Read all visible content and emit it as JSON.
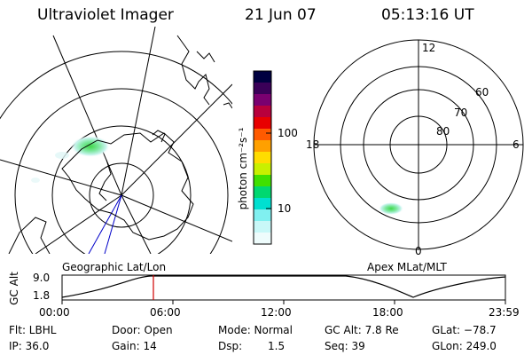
{
  "header": {
    "title": "Ultraviolet Imager",
    "date": "21 Jun 07",
    "time": "05:13:16 UT"
  },
  "colorbar": {
    "unit_label": "photon cm⁻²s⁻¹",
    "tick_100": "100",
    "tick_10": "10",
    "colors": [
      "#000040",
      "#3a0058",
      "#7a0070",
      "#b8003c",
      "#e80000",
      "#ff5a00",
      "#ffa000",
      "#ffdc00",
      "#c8f000",
      "#40e000",
      "#00d870",
      "#00e0d0",
      "#80f0f0",
      "#c8f8f8",
      "#eefcfc"
    ]
  },
  "left_map": {
    "label": "Geographic Lat/Lon"
  },
  "right_map": {
    "label": "Apex MLat/MLT",
    "mlt_top": "12",
    "mlt_left": "18",
    "mlt_right": "6",
    "mlt_bottom": "0",
    "lat_60": "60",
    "lat_70": "70",
    "lat_80": "80"
  },
  "altitude_plot": {
    "ylabel": "GC Alt",
    "ytick_high": "9.0",
    "ytick_low": "1.8",
    "xticks": [
      "00:00",
      "06:00",
      "12:00",
      "18:00",
      "23:59"
    ],
    "marker_color": "#d00000"
  },
  "footer": {
    "filter": "Flt: LBHL",
    "door": "Door: Open",
    "mode": "Mode: Normal",
    "gc_alt": "GC Alt: 7.8 Re",
    "glat": "GLat: −78.7",
    "ip": "IP: 36.0",
    "gain": "Gain: 14",
    "dsp_label": "Dsp:",
    "dsp_value": "1.5",
    "seq": "Seq: 39",
    "glon": "GLon: 249.0"
  }
}
